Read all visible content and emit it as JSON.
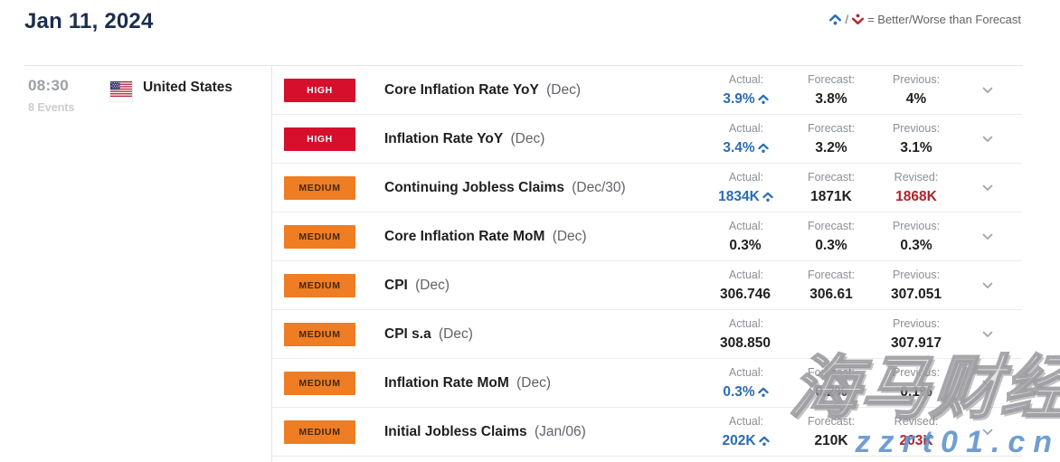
{
  "page": {
    "title": "Jan 11, 2024"
  },
  "legend": {
    "better_icon": "caret-up-dot-icon",
    "worse_icon": "caret-down-dot-icon",
    "separator": "/",
    "text": "= Better/Worse than Forecast"
  },
  "group": {
    "time": "08:30",
    "events_count": "8 Events",
    "country": "United States",
    "flag": "us-flag-icon"
  },
  "colors": {
    "title": "#1d2d50",
    "high_badge": "#d50f2c",
    "medium_badge": "#ee7d23",
    "better_actual": "#2b6cb5",
    "revised_value": "#ae2329"
  },
  "events": [
    {
      "importance": "HIGH",
      "name": "Core Inflation Rate YoY",
      "period": "(Dec)",
      "actual": {
        "label": "Actual:",
        "value": "3.9%",
        "better": true
      },
      "forecast": {
        "label": "Forecast:",
        "value": "3.8%"
      },
      "previous": {
        "label": "Previous:",
        "value": "4%",
        "revised": false
      }
    },
    {
      "importance": "HIGH",
      "name": "Inflation Rate YoY",
      "period": "(Dec)",
      "actual": {
        "label": "Actual:",
        "value": "3.4%",
        "better": true
      },
      "forecast": {
        "label": "Forecast:",
        "value": "3.2%"
      },
      "previous": {
        "label": "Previous:",
        "value": "3.1%",
        "revised": false
      }
    },
    {
      "importance": "MEDIUM",
      "name": "Continuing Jobless Claims",
      "period": "(Dec/30)",
      "actual": {
        "label": "Actual:",
        "value": "1834K",
        "better": true
      },
      "forecast": {
        "label": "Forecast:",
        "value": "1871K"
      },
      "previous": {
        "label": "Revised:",
        "value": "1868K",
        "revised": true
      }
    },
    {
      "importance": "MEDIUM",
      "name": "Core Inflation Rate MoM",
      "period": "(Dec)",
      "actual": {
        "label": "Actual:",
        "value": "0.3%",
        "better": false
      },
      "forecast": {
        "label": "Forecast:",
        "value": "0.3%"
      },
      "previous": {
        "label": "Previous:",
        "value": "0.3%",
        "revised": false
      }
    },
    {
      "importance": "MEDIUM",
      "name": "CPI",
      "period": "(Dec)",
      "actual": {
        "label": "Actual:",
        "value": "306.746",
        "better": false
      },
      "forecast": {
        "label": "Forecast:",
        "value": "306.61"
      },
      "previous": {
        "label": "Previous:",
        "value": "307.051",
        "revised": false
      }
    },
    {
      "importance": "MEDIUM",
      "name": "CPI s.a",
      "period": "(Dec)",
      "actual": {
        "label": "Actual:",
        "value": "308.850",
        "better": false
      },
      "forecast": null,
      "previous": {
        "label": "Previous:",
        "value": "307.917",
        "revised": false
      }
    },
    {
      "importance": "MEDIUM",
      "name": "Inflation Rate MoM",
      "period": "(Dec)",
      "actual": {
        "label": "Actual:",
        "value": "0.3%",
        "better": true
      },
      "forecast": {
        "label": "Forecast:",
        "value": "0.2%"
      },
      "previous": {
        "label": "Previous:",
        "value": "0.1%",
        "revised": false
      }
    },
    {
      "importance": "MEDIUM",
      "name": "Initial Jobless Claims",
      "period": "(Jan/06)",
      "actual": {
        "label": "Actual:",
        "value": "202K",
        "better": true
      },
      "forecast": {
        "label": "Forecast:",
        "value": "210K"
      },
      "previous": {
        "label": "Revised:",
        "value": "203K",
        "revised": true
      }
    }
  ],
  "watermark": {
    "line1": "海马财经",
    "line2": "zzrt01.cn"
  }
}
